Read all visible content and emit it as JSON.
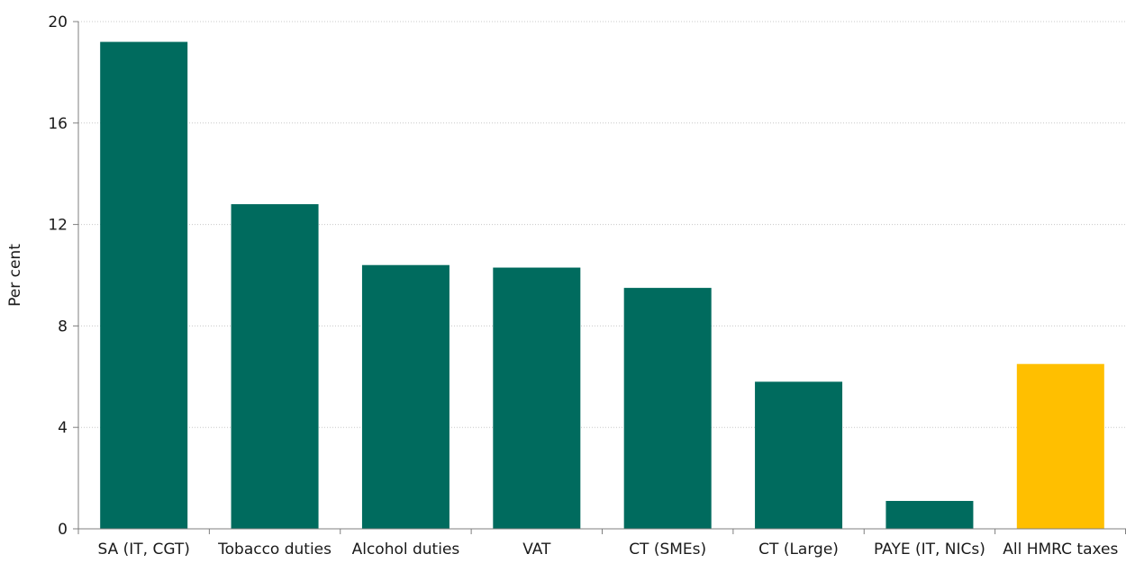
{
  "chart_data": {
    "type": "bar",
    "ylabel": "Per cent",
    "xlabel": "",
    "ylim": [
      0,
      20
    ],
    "yticks": [
      0,
      4,
      8,
      12,
      16,
      20
    ],
    "ytick_labels": [
      "0",
      "4",
      "8",
      "12",
      "16",
      "20"
    ],
    "grid": true,
    "categories": [
      "SA (IT, CGT)",
      "Tobacco duties",
      "Alcohol duties",
      "VAT",
      "CT (SMEs)",
      "CT (Large)",
      "PAYE (IT, NICs)",
      "All HMRC taxes"
    ],
    "values": [
      19.2,
      12.8,
      10.4,
      10.3,
      9.5,
      5.8,
      1.1,
      6.5
    ],
    "colors": {
      "bar": "#006b5e",
      "highlight": "#ffbf00"
    },
    "highlight_categories": [
      "All HMRC taxes"
    ]
  }
}
